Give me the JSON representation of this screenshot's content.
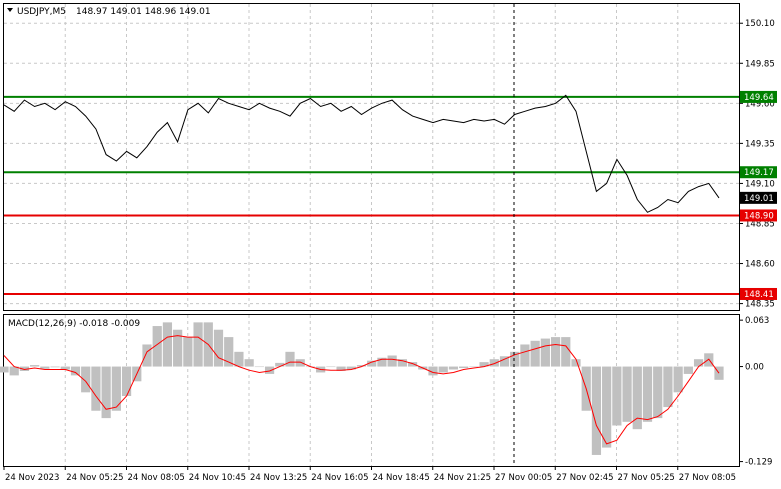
{
  "window": {
    "symbol_label": "USDJPY,M5",
    "ohlc_label": "148.97 149.01 148.96 149.01"
  },
  "macd": {
    "label": "MACD(12,26,9) -0.018 -0.009"
  },
  "colors": {
    "price_line": "#000000",
    "green_level": "#008000",
    "red_level": "#e60000",
    "histogram": "#c0c0c0",
    "signal_line": "#ff0000",
    "grid": "#c8c8c8"
  },
  "chart_data": [
    {
      "type": "line",
      "series": [
        {
          "values": [
            149.59,
            149.55,
            149.62,
            149.58,
            149.6,
            149.56,
            149.61,
            149.58,
            149.52,
            149.44,
            149.28,
            149.24,
            149.3,
            149.26,
            149.33,
            149.42,
            149.48,
            149.36,
            149.56,
            149.6,
            149.54,
            149.63,
            149.6,
            149.58,
            149.56,
            149.6,
            149.57,
            149.55,
            149.52,
            149.6,
            149.63,
            149.58,
            149.6,
            149.55,
            149.58,
            149.53,
            149.57,
            149.6,
            149.62,
            149.56,
            149.52,
            149.5,
            149.48,
            149.5,
            149.49,
            149.48,
            149.5,
            149.49,
            149.5,
            149.47,
            149.53,
            149.55,
            149.57,
            149.58,
            149.6,
            149.65,
            149.55,
            149.3,
            149.05,
            149.1,
            149.25,
            149.15,
            149.0,
            148.92,
            148.95,
            149.0,
            148.98,
            149.05,
            149.08,
            149.1,
            149.01
          ]
        }
      ],
      "y_ticks": [
        "150.10",
        "149.85",
        "149.60",
        "149.35",
        "149.10",
        "148.85",
        "148.60",
        "148.35"
      ],
      "ylim": [
        148.31,
        150.22
      ],
      "current_price": "149.01",
      "levels": [
        {
          "value": "149.64",
          "color": "green"
        },
        {
          "value": "149.17",
          "color": "green"
        },
        {
          "value": "148.90",
          "color": "red"
        },
        {
          "value": "148.41",
          "color": "red"
        }
      ]
    },
    {
      "type": "bar",
      "histogram": [
        -0.008,
        -0.012,
        -0.006,
        0.002,
        -0.003,
        -0.001,
        -0.004,
        -0.012,
        -0.035,
        -0.06,
        -0.07,
        -0.06,
        -0.04,
        -0.02,
        0.03,
        0.055,
        0.06,
        0.05,
        0.04,
        0.06,
        0.06,
        0.05,
        0.04,
        0.02,
        0.01,
        0.0,
        -0.01,
        0.005,
        0.02,
        0.01,
        0.0,
        -0.008,
        0.0,
        -0.006,
        -0.004,
        0.002,
        0.008,
        0.012,
        0.015,
        0.01,
        0.006,
        -0.004,
        -0.012,
        -0.008,
        -0.004,
        -0.002,
        0.0,
        0.006,
        0.01,
        0.014,
        0.02,
        0.03,
        0.035,
        0.038,
        0.04,
        0.04,
        0.01,
        -0.06,
        -0.12,
        -0.11,
        -0.08,
        -0.075,
        -0.085,
        -0.075,
        -0.07,
        -0.055,
        -0.035,
        -0.01,
        0.01,
        0.018,
        -0.018
      ],
      "signal": [
        0.015,
        0.0,
        -0.004,
        -0.002,
        -0.004,
        -0.004,
        -0.004,
        -0.008,
        -0.02,
        -0.04,
        -0.058,
        -0.055,
        -0.04,
        -0.01,
        0.02,
        0.03,
        0.04,
        0.042,
        0.04,
        0.04,
        0.03,
        0.012,
        0.006,
        0.0,
        -0.005,
        -0.008,
        -0.006,
        0.0,
        0.006,
        0.006,
        0.0,
        -0.004,
        -0.005,
        -0.005,
        -0.004,
        0.0,
        0.006,
        0.01,
        0.01,
        0.008,
        0.004,
        -0.002,
        -0.008,
        -0.01,
        -0.008,
        -0.004,
        -0.002,
        0.0,
        0.004,
        0.01,
        0.016,
        0.02,
        0.024,
        0.028,
        0.03,
        0.028,
        0.01,
        -0.03,
        -0.08,
        -0.105,
        -0.1,
        -0.08,
        -0.07,
        -0.072,
        -0.068,
        -0.058,
        -0.04,
        -0.02,
        0.0,
        0.01,
        -0.009
      ],
      "y_ticks": [
        "0.063",
        "0.00",
        "-0.129"
      ],
      "ylim": [
        -0.135,
        0.07
      ]
    }
  ],
  "x_labels": [
    "24 Nov 2023",
    "24 Nov 05:25",
    "24 Nov 08:05",
    "24 Nov 10:45",
    "24 Nov 13:25",
    "24 Nov 16:05",
    "24 Nov 18:45",
    "24 Nov 21:25",
    "27 Nov 00:05",
    "27 Nov 02:45",
    "27 Nov 05:25",
    "27 Nov 08:05"
  ]
}
